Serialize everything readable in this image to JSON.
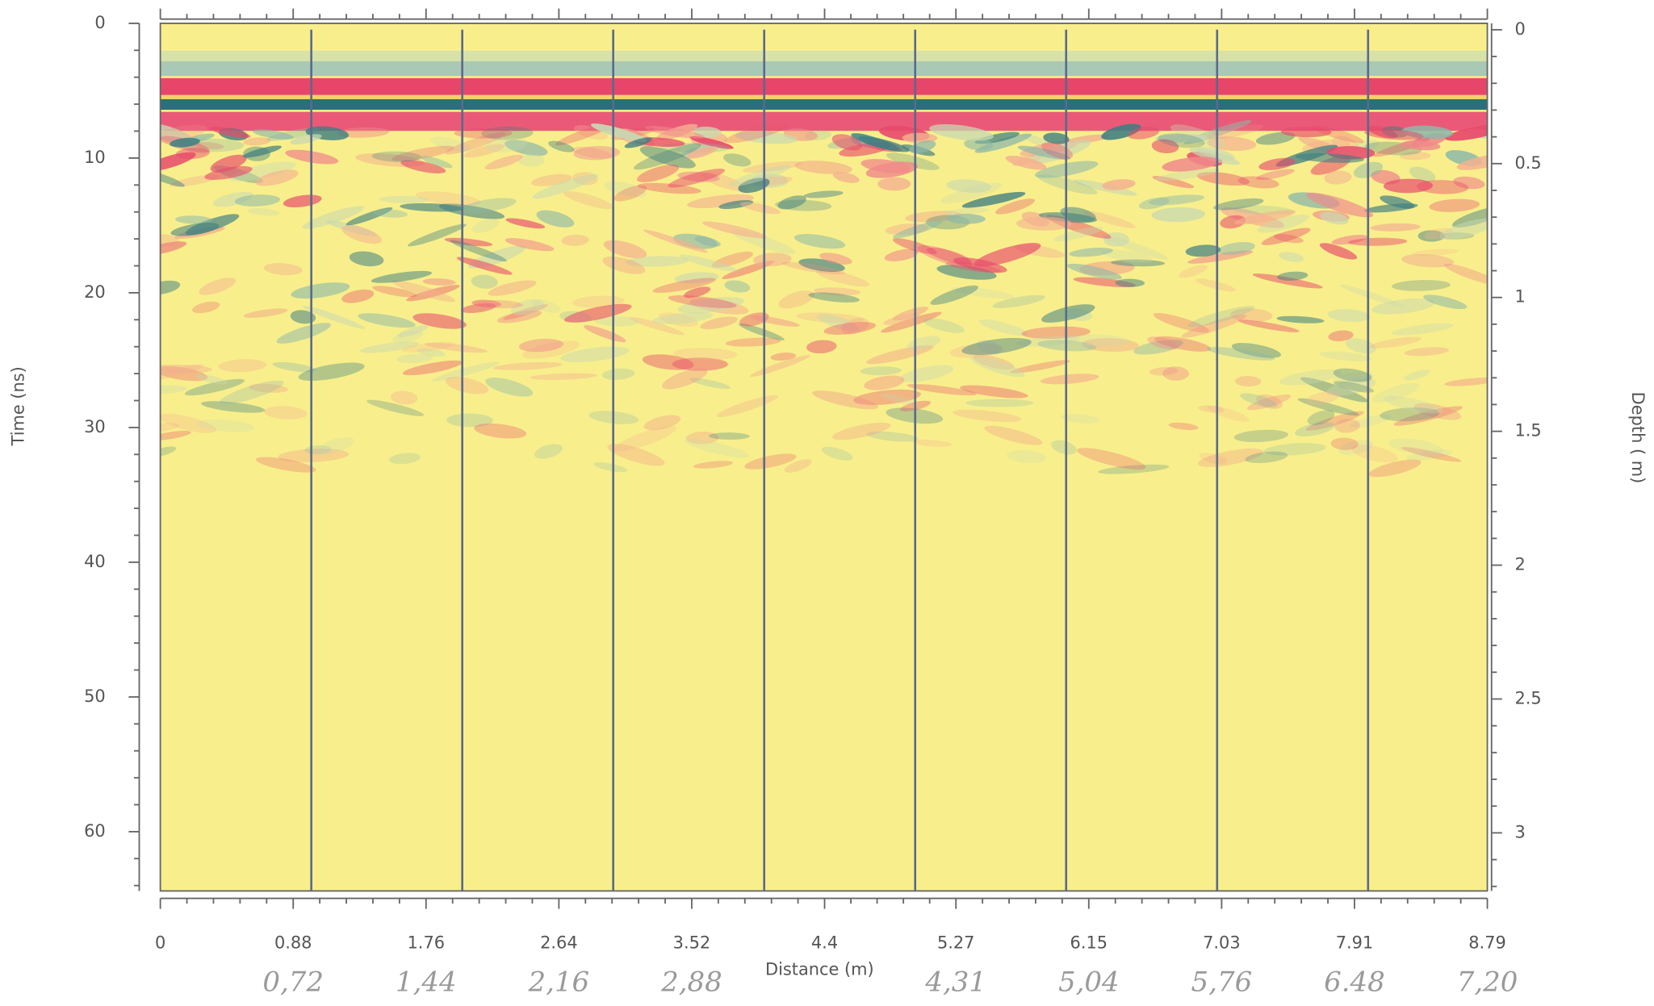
{
  "chart_data": {
    "type": "radargram",
    "xlabel": "Distance (m)",
    "ylabel": "Time (ns)",
    "y2label": "Depth ( m)",
    "xlim": [
      0,
      8.79
    ],
    "xticks": [
      0,
      0.88,
      1.76,
      2.64,
      3.52,
      4.4,
      5.27,
      6.15,
      7.03,
      7.91,
      8.79
    ],
    "ylim": [
      0,
      64.4
    ],
    "yticks": [
      0,
      10,
      20,
      30,
      40,
      50,
      60
    ],
    "y2lim": [
      -0.024,
      3.217
    ],
    "y2ticks": [
      0,
      0.5,
      1,
      1.5,
      2,
      2.5,
      3
    ],
    "markers": [
      1,
      2,
      3,
      4,
      5,
      6,
      7,
      8
    ],
    "marker_color": "#5a6a8a",
    "annotations": [
      {
        "at": 0.88,
        "text": "0,72"
      },
      {
        "at": 1.76,
        "text": "1,44"
      },
      {
        "at": 2.64,
        "text": "2,16"
      },
      {
        "at": 3.52,
        "text": "2,88"
      },
      {
        "at": 5.27,
        "text": "4,31"
      },
      {
        "at": 6.15,
        "text": "5,04"
      },
      {
        "at": 7.03,
        "text": "5,76"
      },
      {
        "at": 7.91,
        "text": "6.48"
      },
      {
        "at": 8.79,
        "text": "7,20"
      }
    ]
  }
}
